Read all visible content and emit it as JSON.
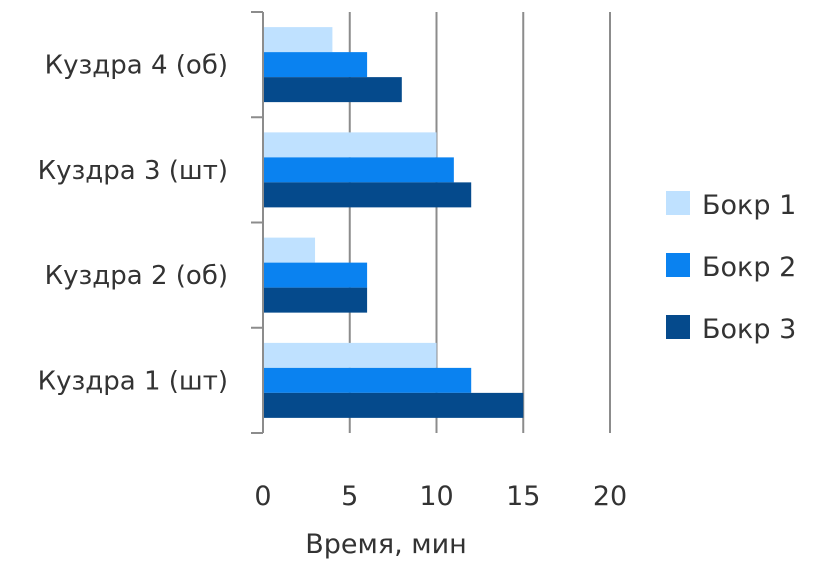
{
  "chart_data": {
    "type": "bar",
    "orientation": "horizontal",
    "categories": [
      "Куздра 1 (шт)",
      "Куздра 2 (об)",
      "Куздра 3 (шт)",
      "Куздра 4 (об)"
    ],
    "series": [
      {
        "name": "Бокр 1",
        "color": "#bfe1ff",
        "values": [
          10,
          3,
          10,
          4
        ]
      },
      {
        "name": "Бокр 2",
        "color": "#0a82f0",
        "values": [
          12,
          6,
          11,
          6
        ]
      },
      {
        "name": "Бокр 3",
        "color": "#054a8c",
        "values": [
          15,
          6,
          12,
          8
        ]
      }
    ],
    "xlabel": "Время, мин",
    "xlim": [
      0,
      20
    ],
    "xticks": [
      0,
      5,
      10,
      15,
      20
    ],
    "grid": "vertical",
    "legend": "right"
  }
}
